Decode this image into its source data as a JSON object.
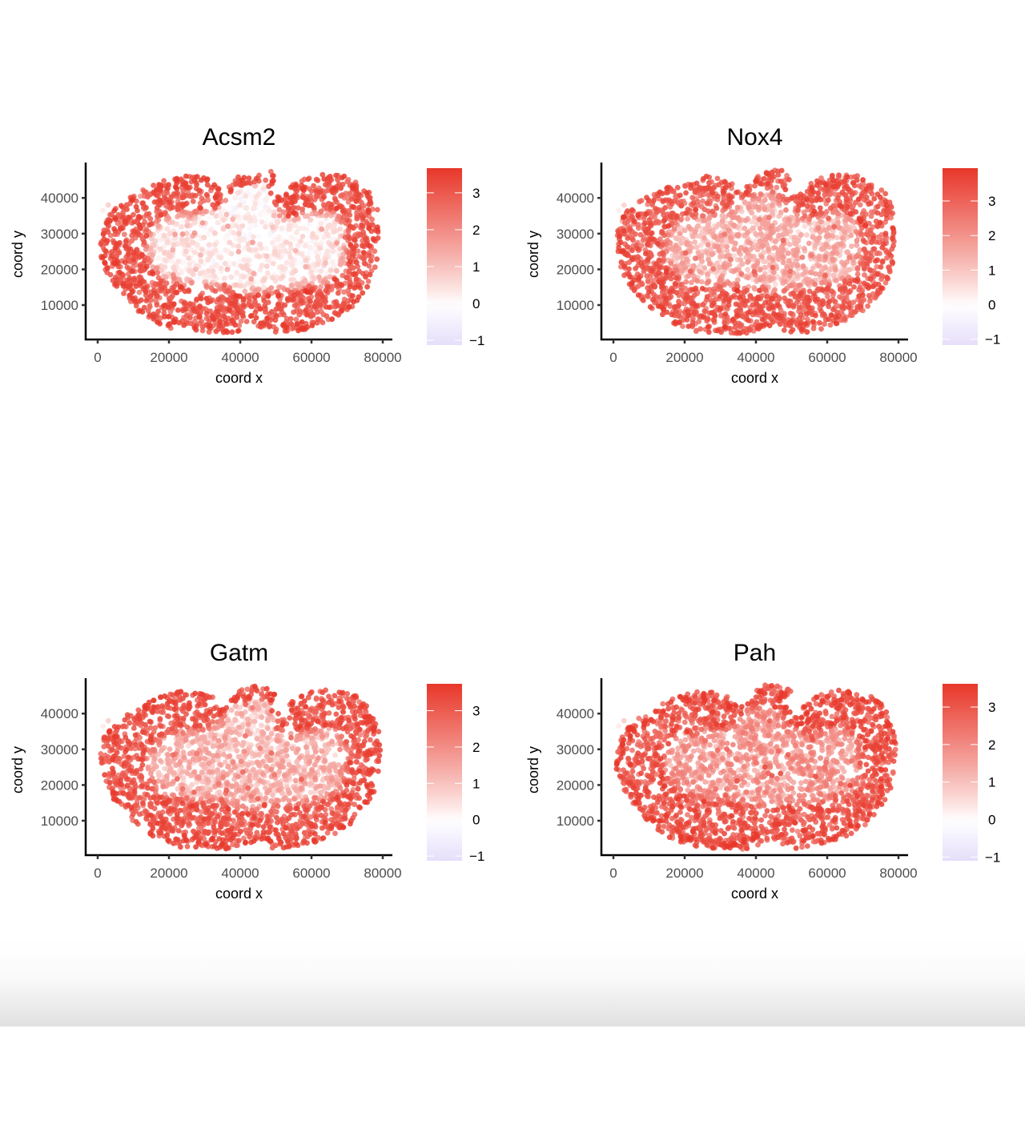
{
  "colors": {
    "high": "#e8372a",
    "mid": "#ffffff",
    "low": "#e6defa",
    "axis": "#000000",
    "tick_label": "#4d4d4d"
  },
  "chart_data": [
    {
      "type": "scatter",
      "title": "Acsm2",
      "xlabel": "coord x",
      "ylabel": "coord y",
      "xlim": [
        -3000,
        83000
      ],
      "ylim": [
        500,
        50000
      ],
      "x_ticks": [
        "0",
        "20000",
        "40000",
        "60000",
        "80000"
      ],
      "x_tick_values": [
        0,
        20000,
        40000,
        60000,
        80000
      ],
      "y_ticks": [
        "10000",
        "20000",
        "30000",
        "40000"
      ],
      "y_tick_values": [
        10000,
        20000,
        30000,
        40000
      ],
      "colorbar": {
        "ticks": [
          "3",
          "2",
          "1",
          "0",
          "−1"
        ],
        "tick_values": [
          3,
          2,
          1,
          0,
          -1
        ],
        "min": -1.13,
        "max": 3.67
      },
      "pattern": {
        "cortex_value": 3.2,
        "medulla_value": 0.2,
        "inner_band": 0.55,
        "noise": 0.6
      },
      "grid": false,
      "legend": "right"
    },
    {
      "type": "scatter",
      "title": "Nox4",
      "xlabel": "coord x",
      "ylabel": "coord y",
      "xlim": [
        -3000,
        83000
      ],
      "ylim": [
        500,
        50000
      ],
      "x_ticks": [
        "0",
        "20000",
        "40000",
        "60000",
        "80000"
      ],
      "x_tick_values": [
        0,
        20000,
        40000,
        60000,
        80000
      ],
      "y_ticks": [
        "10000",
        "20000",
        "30000",
        "40000"
      ],
      "y_tick_values": [
        10000,
        20000,
        30000,
        40000
      ],
      "colorbar": {
        "ticks": [
          "3",
          "2",
          "1",
          "0",
          "−1"
        ],
        "tick_values": [
          3,
          2,
          1,
          0,
          -1
        ],
        "min": -1.17,
        "max": 3.95
      },
      "pattern": {
        "cortex_value": 3.3,
        "medulla_value": 1.3,
        "inner_band": 0.45,
        "noise": 0.7
      },
      "grid": false,
      "legend": "right"
    },
    {
      "type": "scatter",
      "title": "Gatm",
      "xlabel": "coord x",
      "ylabel": "coord y",
      "xlim": [
        -3000,
        83000
      ],
      "ylim": [
        500,
        50000
      ],
      "x_ticks": [
        "0",
        "20000",
        "40000",
        "60000",
        "80000"
      ],
      "x_tick_values": [
        0,
        20000,
        40000,
        60000,
        80000
      ],
      "y_ticks": [
        "10000",
        "20000",
        "30000",
        "40000"
      ],
      "y_tick_values": [
        10000,
        20000,
        30000,
        40000
      ],
      "colorbar": {
        "ticks": [
          "3",
          "2",
          "1",
          "0",
          "−1"
        ],
        "tick_values": [
          3,
          2,
          1,
          0,
          -1
        ],
        "min": -1.13,
        "max": 3.74
      },
      "pattern": {
        "cortex_value": 3.2,
        "medulla_value": 1.2,
        "inner_band": 0.5,
        "noise": 0.65
      },
      "grid": false,
      "legend": "right"
    },
    {
      "type": "scatter",
      "title": "Pah",
      "xlabel": "coord x",
      "ylabel": "coord y",
      "xlim": [
        -3000,
        83000
      ],
      "ylim": [
        500,
        50000
      ],
      "x_ticks": [
        "0",
        "20000",
        "40000",
        "60000",
        "80000"
      ],
      "x_tick_values": [
        0,
        20000,
        40000,
        60000,
        80000
      ],
      "y_ticks": [
        "10000",
        "20000",
        "30000",
        "40000"
      ],
      "y_tick_values": [
        10000,
        20000,
        30000,
        40000
      ],
      "colorbar": {
        "ticks": [
          "3",
          "2",
          "1",
          "0",
          "−1"
        ],
        "tick_values": [
          3,
          2,
          1,
          0,
          -1
        ],
        "min": -1.1,
        "max": 3.62
      },
      "pattern": {
        "cortex_value": 3.1,
        "medulla_value": 1.6,
        "inner_band": 0.45,
        "noise": 0.7
      },
      "grid": false,
      "legend": "right"
    }
  ]
}
